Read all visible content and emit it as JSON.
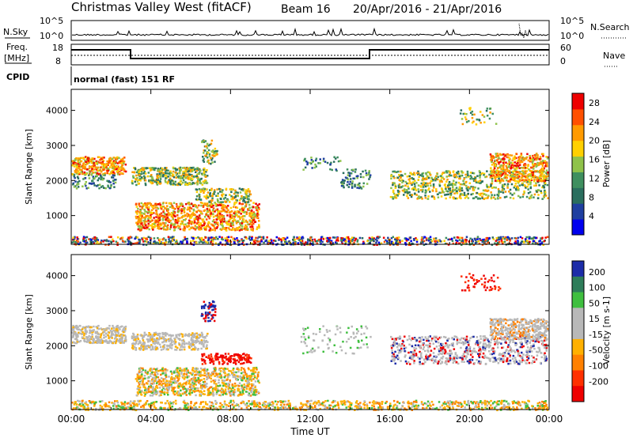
{
  "header": {
    "site": "Christmas Valley West (fitACF)",
    "beam": "Beam 16",
    "dates": "20/Apr/2016 - 21/Apr/2016"
  },
  "left_labels": {
    "nsky": "N.Sky",
    "freq_line1": "Freq.",
    "freq_line2": "[MHz]",
    "cpid": "CPID"
  },
  "right_labels": {
    "nsearch": "N.Search",
    "nave": "Nave"
  },
  "noise_panel": {
    "left_ticks": [
      "10^5",
      "10^0"
    ],
    "right_ticks": [
      "10^5",
      "10^0"
    ]
  },
  "freq_panel": {
    "left_ticks": [
      "18",
      "8"
    ],
    "right_ticks": [
      "60",
      "0"
    ]
  },
  "cpid_text": "normal (fast) 151 RF",
  "colors": {
    "power": [
      "#0000ee",
      "#1f3fa0",
      "#2a6e5e",
      "#3f8f5f",
      "#8fc24a",
      "#ffd000",
      "#ff9a00",
      "#ff5000",
      "#ee0000"
    ],
    "velocity_pos": [
      "#1c2ca8",
      "#2e7d5a",
      "#3fbf3f"
    ],
    "velocity_gray": "#b8b8b8",
    "velocity_neg": [
      "#ffb000",
      "#ff8000",
      "#ff3000",
      "#ee0000"
    ]
  },
  "chart_data": [
    {
      "type": "heatmap",
      "name": "power",
      "ylabel": "Slant Range [km]",
      "yticks": [
        1000,
        2000,
        3000,
        4000
      ],
      "ylim": [
        180,
        4600
      ],
      "xlim": [
        0,
        24
      ],
      "colorbar_label": "Power [dB]",
      "colorbar_ticks": [
        4,
        8,
        12,
        16,
        20,
        24,
        28
      ],
      "colorbar_range": [
        0,
        30
      ]
    },
    {
      "type": "heatmap",
      "name": "velocity",
      "ylabel": "Slant Range [km]",
      "yticks": [
        1000,
        2000,
        3000,
        4000
      ],
      "ylim": [
        180,
        4600
      ],
      "xlim": [
        0,
        24
      ],
      "colorbar_label": "Velocity [m s-1]",
      "colorbar_ticks": [
        "200",
        "100",
        "50",
        "15",
        "-15",
        "-50",
        "-100",
        "-200"
      ],
      "xlabel": "Time UT",
      "xticks": [
        "00:00",
        "04:00",
        "08:00",
        "12:00",
        "16:00",
        "20:00",
        "00:00"
      ]
    }
  ]
}
